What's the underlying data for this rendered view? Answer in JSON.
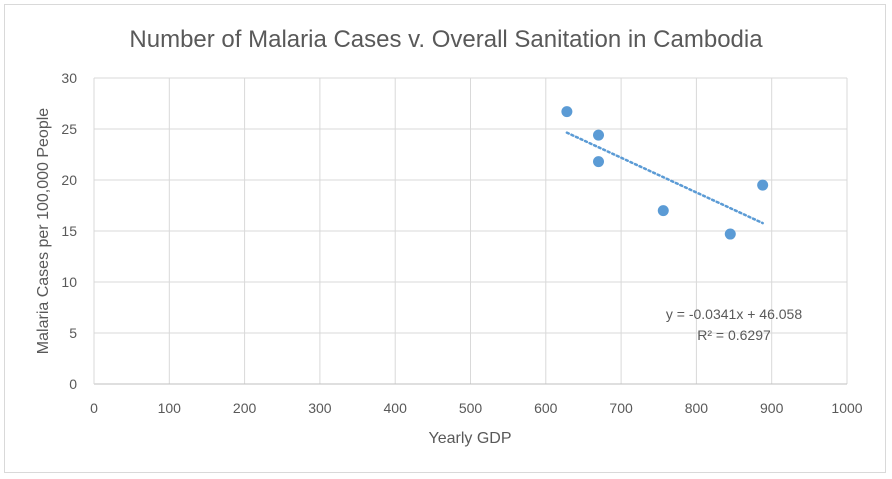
{
  "chart_data": {
    "type": "scatter",
    "title": "Number of Malaria Cases v. Overall Sanitation in Cambodia",
    "xlabel": "Yearly GDP",
    "ylabel": "Malaria Cases per 100,000 People",
    "xlim": [
      0,
      1000
    ],
    "ylim": [
      0,
      30
    ],
    "x_ticks": [
      "0",
      "100",
      "200",
      "300",
      "400",
      "500",
      "600",
      "700",
      "800",
      "900",
      "1000"
    ],
    "y_ticks": [
      "0",
      "5",
      "10",
      "15",
      "20",
      "25",
      "30"
    ],
    "grid": true,
    "legend": "none",
    "marker_color": "#5b9bd5",
    "trendline_color": "#5b9bd5",
    "points": [
      {
        "x": 628,
        "y": 26.7
      },
      {
        "x": 670,
        "y": 24.4
      },
      {
        "x": 670,
        "y": 21.8
      },
      {
        "x": 756,
        "y": 17.0
      },
      {
        "x": 845,
        "y": 14.7
      },
      {
        "x": 888,
        "y": 19.5
      }
    ],
    "trendline": {
      "type": "linear",
      "slope": -0.0341,
      "intercept": 46.058,
      "x_range": [
        628,
        888
      ],
      "equation_label": "y = -0.0341x + 46.058",
      "r2_label": "R² = 0.6297"
    }
  }
}
